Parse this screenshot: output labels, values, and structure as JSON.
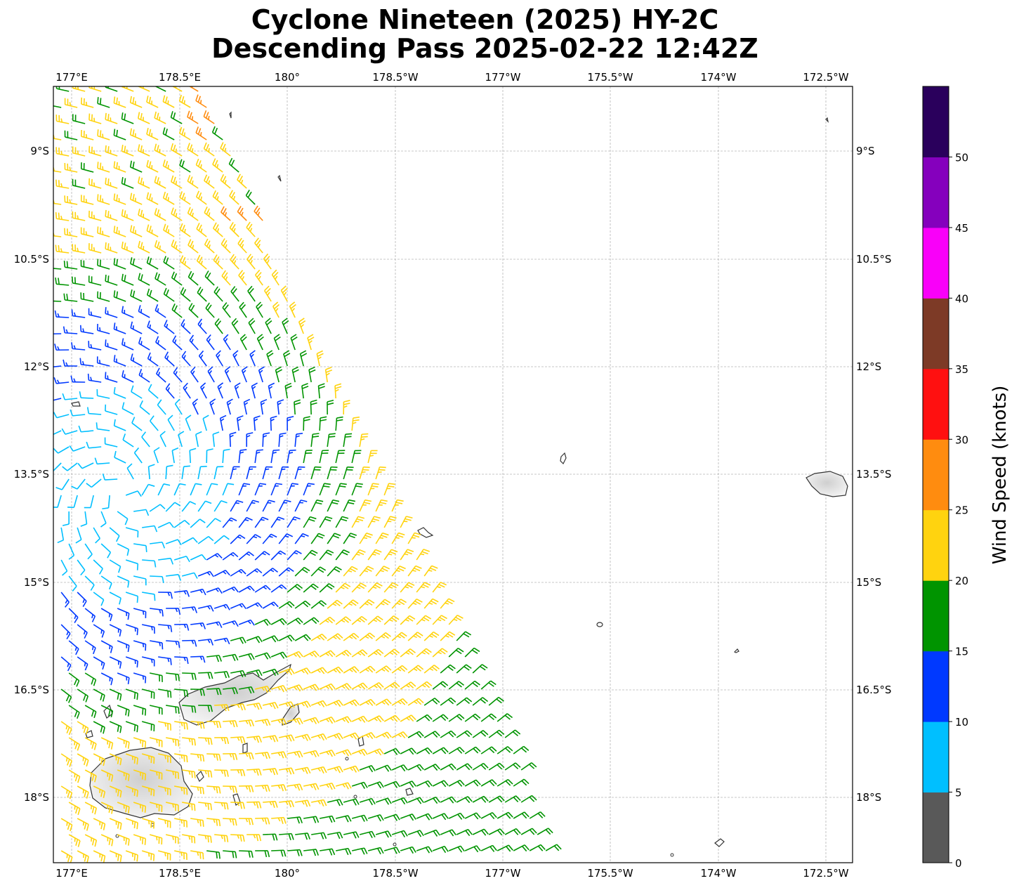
{
  "title": {
    "line1": "Cyclone Nineteen (2025) HY-2C",
    "line2": "Descending Pass 2025-02-22 12:42Z"
  },
  "map": {
    "lon_ticks": [
      "177°E",
      "178.5°E",
      "180°",
      "178.5°W",
      "177°W",
      "175.5°W",
      "174°W",
      "172.5°W"
    ],
    "lat_ticks": [
      "9°S",
      "10.5°S",
      "12°S",
      "13.5°S",
      "15°S",
      "16.5°S",
      "18°S"
    ],
    "gridlines": true,
    "background": "#ffffff",
    "coastline_color": "#333333",
    "land_fill": "#e2e2e2",
    "barb_field": "wind barbs along a descending satellite swath, speeds in knots, colored by the wind-speed scale"
  },
  "colorbar": {
    "label": "Wind Speed (knots)",
    "ticks": [
      "0",
      "5",
      "10",
      "15",
      "20",
      "25",
      "30",
      "35",
      "40",
      "45",
      "50"
    ],
    "colors": [
      "#595959",
      "#00bfff",
      "#0039ff",
      "#009400",
      "#ffd30f",
      "#ff8c0f",
      "#ff1010",
      "#7d3a26",
      "#f900f9",
      "#8500bd",
      "#2a005c"
    ]
  }
}
